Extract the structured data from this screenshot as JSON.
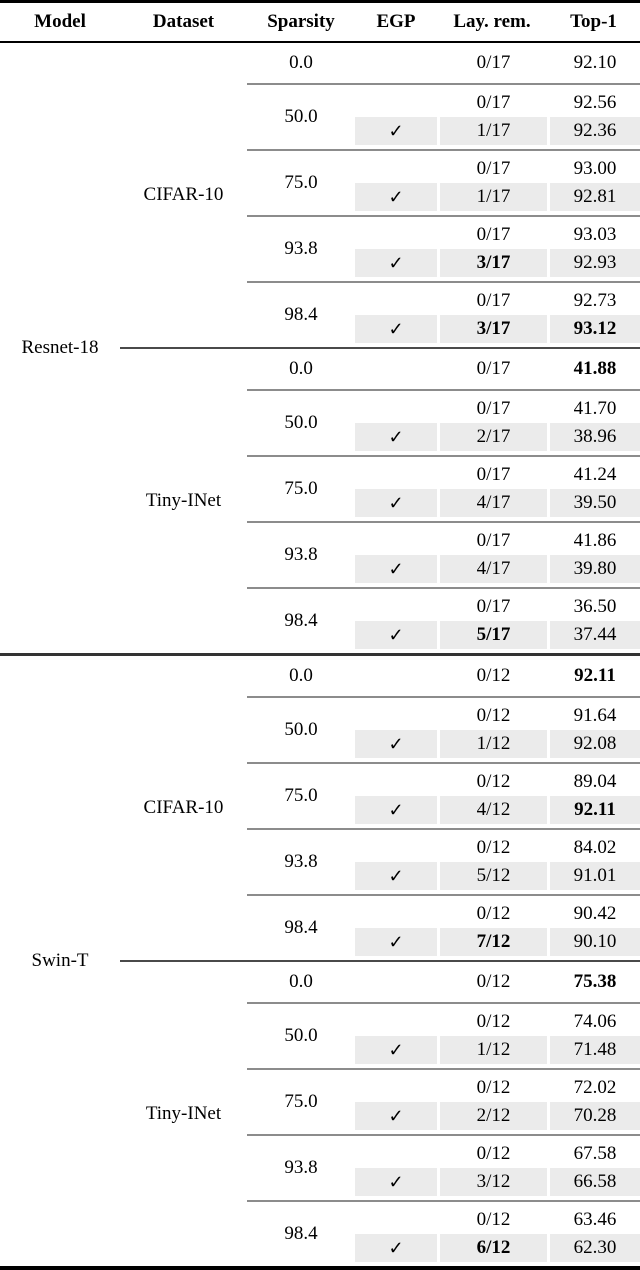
{
  "table": {
    "columns": [
      "Model",
      "Dataset",
      "Sparsity",
      "EGP",
      "Lay. rem.",
      "Top-1"
    ],
    "check_glyph": "✓",
    "colors": {
      "shaded_row_bg": "#ebebeb",
      "top_rule": "#000000",
      "header_rule": "#000000",
      "model_rule": "#333333",
      "dataset_rule": "#4a4a4a",
      "group_rule": "#8c8c8c"
    },
    "blocks": [
      {
        "model": "Resnet-18",
        "datasets": [
          {
            "name": "CIFAR-10",
            "groups": [
              {
                "sparsity": "0.0",
                "rows": [
                  {
                    "egp": false,
                    "lay_rem": "0/17",
                    "top1": "92.10"
                  }
                ]
              },
              {
                "sparsity": "50.0",
                "rows": [
                  {
                    "egp": false,
                    "lay_rem": "0/17",
                    "top1": "92.56"
                  },
                  {
                    "egp": true,
                    "shaded": true,
                    "lay_rem": "1/17",
                    "top1": "92.36"
                  }
                ]
              },
              {
                "sparsity": "75.0",
                "rows": [
                  {
                    "egp": false,
                    "lay_rem": "0/17",
                    "top1": "93.00"
                  },
                  {
                    "egp": true,
                    "shaded": true,
                    "lay_rem": "1/17",
                    "top1": "92.81"
                  }
                ]
              },
              {
                "sparsity": "93.8",
                "rows": [
                  {
                    "egp": false,
                    "lay_rem": "0/17",
                    "top1": "93.03"
                  },
                  {
                    "egp": true,
                    "shaded": true,
                    "lay_rem": "3/17",
                    "lay_rem_bold": true,
                    "top1": "92.93"
                  }
                ]
              },
              {
                "sparsity": "98.4",
                "rows": [
                  {
                    "egp": false,
                    "lay_rem": "0/17",
                    "top1": "92.73"
                  },
                  {
                    "egp": true,
                    "shaded": true,
                    "lay_rem": "3/17",
                    "lay_rem_bold": true,
                    "top1": "93.12",
                    "top1_bold": true
                  }
                ]
              }
            ]
          },
          {
            "name": "Tiny-INet",
            "groups": [
              {
                "sparsity": "0.0",
                "rows": [
                  {
                    "egp": false,
                    "lay_rem": "0/17",
                    "top1": "41.88",
                    "top1_bold": true
                  }
                ]
              },
              {
                "sparsity": "50.0",
                "rows": [
                  {
                    "egp": false,
                    "lay_rem": "0/17",
                    "top1": "41.70"
                  },
                  {
                    "egp": true,
                    "shaded": true,
                    "lay_rem": "2/17",
                    "top1": "38.96"
                  }
                ]
              },
              {
                "sparsity": "75.0",
                "rows": [
                  {
                    "egp": false,
                    "lay_rem": "0/17",
                    "top1": "41.24"
                  },
                  {
                    "egp": true,
                    "shaded": true,
                    "lay_rem": "4/17",
                    "top1": "39.50"
                  }
                ]
              },
              {
                "sparsity": "93.8",
                "rows": [
                  {
                    "egp": false,
                    "lay_rem": "0/17",
                    "top1": "41.86"
                  },
                  {
                    "egp": true,
                    "shaded": true,
                    "lay_rem": "4/17",
                    "top1": "39.80"
                  }
                ]
              },
              {
                "sparsity": "98.4",
                "rows": [
                  {
                    "egp": false,
                    "lay_rem": "0/17",
                    "top1": "36.50"
                  },
                  {
                    "egp": true,
                    "shaded": true,
                    "lay_rem": "5/17",
                    "lay_rem_bold": true,
                    "top1": "37.44"
                  }
                ]
              }
            ]
          }
        ]
      },
      {
        "model": "Swin-T",
        "datasets": [
          {
            "name": "CIFAR-10",
            "groups": [
              {
                "sparsity": "0.0",
                "rows": [
                  {
                    "egp": false,
                    "lay_rem": "0/12",
                    "top1": "92.11",
                    "top1_bold": true
                  }
                ]
              },
              {
                "sparsity": "50.0",
                "rows": [
                  {
                    "egp": false,
                    "lay_rem": "0/12",
                    "top1": "91.64"
                  },
                  {
                    "egp": true,
                    "shaded": true,
                    "lay_rem": "1/12",
                    "top1": "92.08"
                  }
                ]
              },
              {
                "sparsity": "75.0",
                "rows": [
                  {
                    "egp": false,
                    "lay_rem": "0/12",
                    "top1": "89.04"
                  },
                  {
                    "egp": true,
                    "shaded": true,
                    "lay_rem": "4/12",
                    "top1": "92.11",
                    "top1_bold": true
                  }
                ]
              },
              {
                "sparsity": "93.8",
                "rows": [
                  {
                    "egp": false,
                    "lay_rem": "0/12",
                    "top1": "84.02"
                  },
                  {
                    "egp": true,
                    "shaded": true,
                    "lay_rem": "5/12",
                    "top1": "91.01"
                  }
                ]
              },
              {
                "sparsity": "98.4",
                "rows": [
                  {
                    "egp": false,
                    "lay_rem": "0/12",
                    "top1": "90.42"
                  },
                  {
                    "egp": true,
                    "shaded": true,
                    "lay_rem": "7/12",
                    "lay_rem_bold": true,
                    "top1": "90.10"
                  }
                ]
              }
            ]
          },
          {
            "name": "Tiny-INet",
            "groups": [
              {
                "sparsity": "0.0",
                "rows": [
                  {
                    "egp": false,
                    "lay_rem": "0/12",
                    "top1": "75.38",
                    "top1_bold": true
                  }
                ]
              },
              {
                "sparsity": "50.0",
                "rows": [
                  {
                    "egp": false,
                    "lay_rem": "0/12",
                    "top1": "74.06"
                  },
                  {
                    "egp": true,
                    "shaded": true,
                    "lay_rem": "1/12",
                    "top1": "71.48"
                  }
                ]
              },
              {
                "sparsity": "75.0",
                "rows": [
                  {
                    "egp": false,
                    "lay_rem": "0/12",
                    "top1": "72.02"
                  },
                  {
                    "egp": true,
                    "shaded": true,
                    "lay_rem": "2/12",
                    "top1": "70.28"
                  }
                ]
              },
              {
                "sparsity": "93.8",
                "rows": [
                  {
                    "egp": false,
                    "lay_rem": "0/12",
                    "top1": "67.58"
                  },
                  {
                    "egp": true,
                    "shaded": true,
                    "lay_rem": "3/12",
                    "top1": "66.58"
                  }
                ]
              },
              {
                "sparsity": "98.4",
                "rows": [
                  {
                    "egp": false,
                    "lay_rem": "0/12",
                    "top1": "63.46"
                  },
                  {
                    "egp": true,
                    "shaded": true,
                    "lay_rem": "6/12",
                    "lay_rem_bold": true,
                    "top1": "62.30"
                  }
                ]
              }
            ]
          }
        ]
      }
    ]
  }
}
